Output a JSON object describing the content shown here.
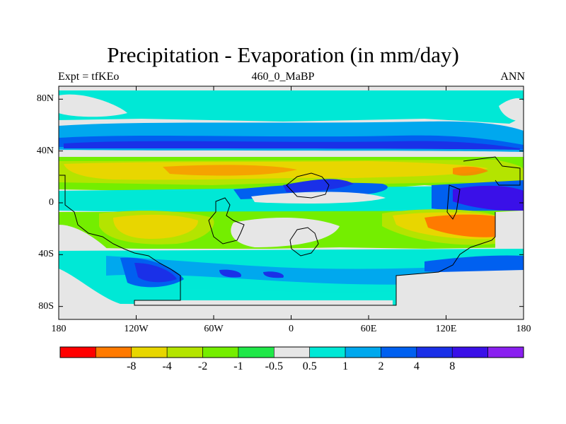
{
  "header": {
    "title": "Precipitation - Evaporation (in mm/day)",
    "left": "Expt = tfKEo",
    "center": "460_0_MaBP",
    "right": "ANN"
  },
  "colors": {
    "background_land": "#e8e8e8",
    "outline": "#000000"
  },
  "map": {
    "projection": "cylindrical-equidistant",
    "lon_range": [
      -180,
      180
    ],
    "lat_range": [
      -90,
      90
    ],
    "y_ticks": [
      {
        "lat": 80,
        "label": "80N"
      },
      {
        "lat": 40,
        "label": "40N"
      },
      {
        "lat": 0,
        "label": "0"
      },
      {
        "lat": -40,
        "label": "40S"
      },
      {
        "lat": -80,
        "label": "80S"
      }
    ],
    "x_ticks": [
      {
        "lon": -180,
        "label": "180"
      },
      {
        "lon": -120,
        "label": "120W"
      },
      {
        "lon": -60,
        "label": "60W"
      },
      {
        "lon": 0,
        "label": "0"
      },
      {
        "lon": 60,
        "label": "60E"
      },
      {
        "lon": 120,
        "label": "120E"
      },
      {
        "lon": 180,
        "label": "180"
      }
    ]
  },
  "colorbar": {
    "colors": [
      "#ff0000",
      "#ff7a00",
      "#e8d600",
      "#b4e400",
      "#74ee00",
      "#20e848",
      "#e6e6e6",
      "#00e8d6",
      "#00a8ee",
      "#0060f0",
      "#1a30e8",
      "#3a10e8",
      "#8a20f0"
    ],
    "labels": [
      "-8",
      "-4",
      "-2",
      "-1",
      "-0.5",
      "0.5",
      "1",
      "2",
      "4",
      "8"
    ]
  }
}
